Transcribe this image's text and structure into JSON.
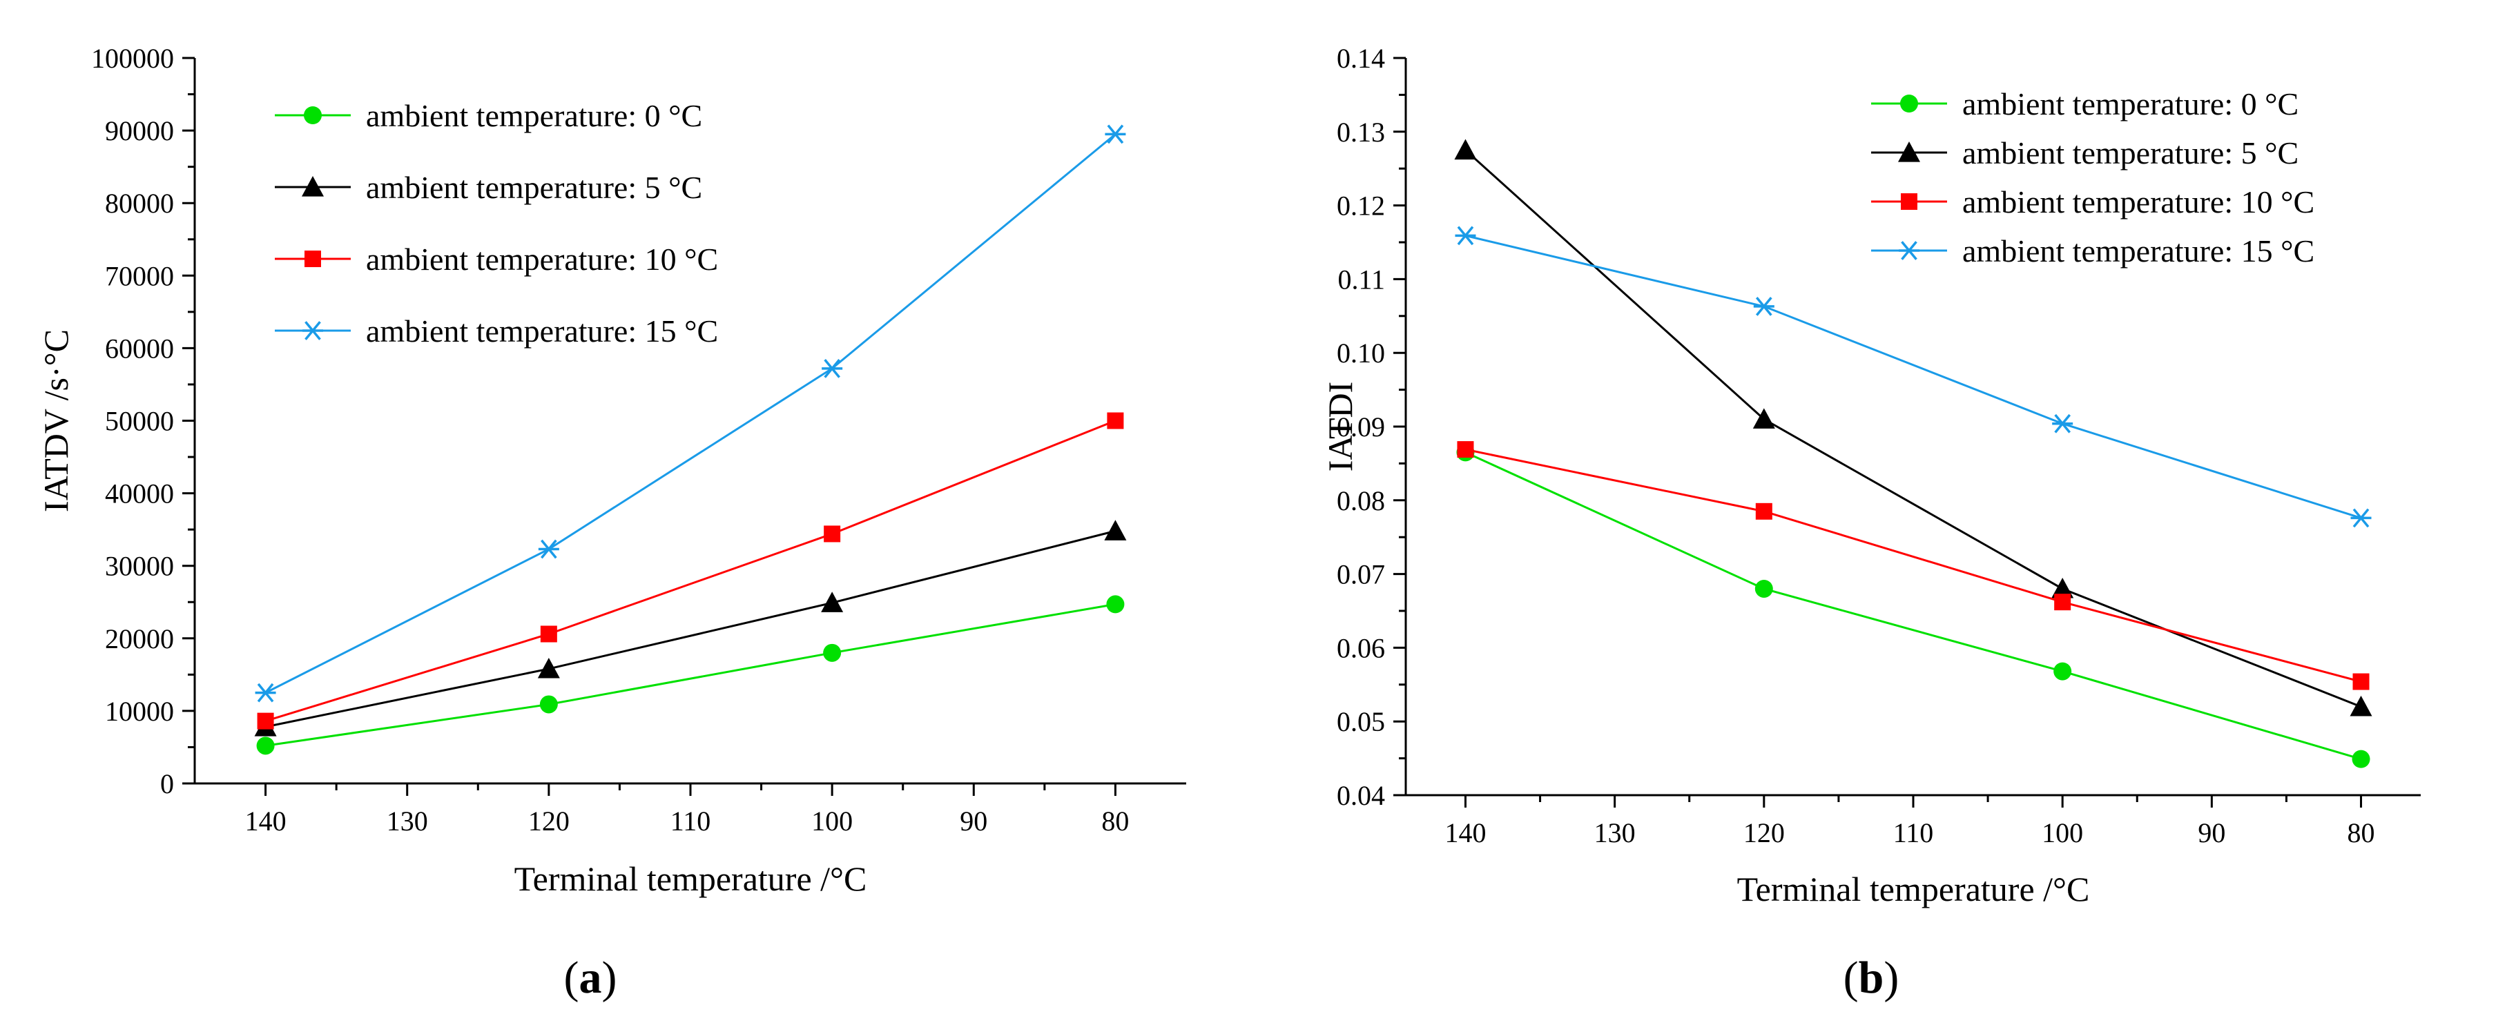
{
  "chart_data": [
    {
      "type": "line",
      "panel_label": "a",
      "xlabel": "Terminal temperature /°C",
      "ylabel": "IATDV /s·°C",
      "x": [
        140,
        120,
        100,
        80
      ],
      "xlim": [
        145,
        75
      ],
      "x_reversed": true,
      "xticks": [
        "140",
        "130",
        "120",
        "110",
        "100",
        "90",
        "80"
      ],
      "ylim": [
        0,
        100000
      ],
      "yticks": [
        "0",
        "10000",
        "20000",
        "30000",
        "40000",
        "50000",
        "60000",
        "70000",
        "80000",
        "90000",
        "100000"
      ],
      "grid": false,
      "legend_position": "top-left",
      "series": [
        {
          "name": "ambient temperature: 0 °C",
          "color": "#00e000",
          "marker": "circle",
          "values": [
            5200,
            10900,
            18000,
            24700
          ]
        },
        {
          "name": "ambient temperature: 5 °C",
          "color": "#000000",
          "marker": "triangle",
          "values": [
            7800,
            15800,
            24900,
            34800
          ]
        },
        {
          "name": "ambient temperature: 10 °C",
          "color": "#ff0000",
          "marker": "square",
          "values": [
            8600,
            20600,
            34400,
            50000
          ]
        },
        {
          "name": "ambient temperature: 15 °C",
          "color": "#1a9be8",
          "marker": "asterisk",
          "values": [
            12500,
            32300,
            57200,
            89500
          ]
        }
      ]
    },
    {
      "type": "line",
      "panel_label": "b",
      "xlabel": "Terminal temperature /°C",
      "ylabel": "IATDI",
      "x": [
        140,
        120,
        100,
        80
      ],
      "xlim": [
        144,
        76
      ],
      "x_reversed": true,
      "xticks": [
        "140",
        "130",
        "120",
        "110",
        "100",
        "90",
        "80"
      ],
      "ylim": [
        0.04,
        0.14
      ],
      "yticks": [
        "0.04",
        "0.05",
        "0.06",
        "0.07",
        "0.08",
        "0.09",
        "0.10",
        "0.11",
        "0.12",
        "0.13",
        "0.14"
      ],
      "grid": false,
      "legend_position": "top-right",
      "series": [
        {
          "name": "ambient temperature: 0 °C",
          "color": "#00e000",
          "marker": "circle",
          "values": [
            0.0865,
            0.068,
            0.0568,
            0.0449
          ]
        },
        {
          "name": "ambient temperature: 5 °C",
          "color": "#000000",
          "marker": "triangle",
          "values": [
            0.1275,
            0.091,
            0.068,
            0.052
          ]
        },
        {
          "name": "ambient temperature: 10 °C",
          "color": "#ff0000",
          "marker": "square",
          "values": [
            0.0869,
            0.0785,
            0.0662,
            0.0554
          ]
        },
        {
          "name": "ambient temperature: 15 °C",
          "color": "#1a9be8",
          "marker": "asterisk",
          "values": [
            0.1159,
            0.1063,
            0.0904,
            0.0776
          ]
        }
      ]
    }
  ]
}
